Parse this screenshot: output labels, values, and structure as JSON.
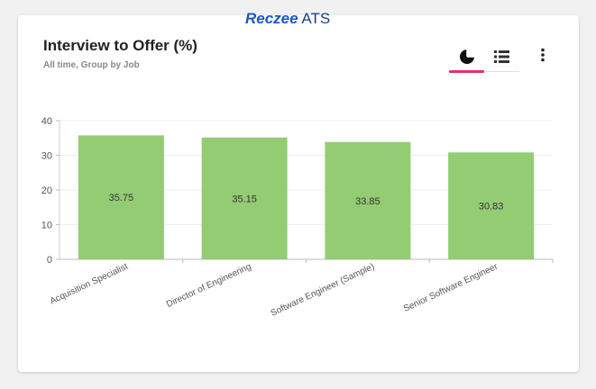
{
  "header": {
    "title": "Interview to Offer (%)",
    "subtitle": "All time, Group by Job",
    "brand_mark": "Reczee",
    "brand_text": " ATS"
  },
  "toolbar": {
    "tabs": [
      {
        "icon": "pie-chart-icon",
        "active": true
      },
      {
        "icon": "list-icon",
        "active": false
      }
    ],
    "menu_icon": "more-vertical-icon"
  },
  "colors": {
    "bar": "#93cc73",
    "accent": "#e3336c",
    "brand": "#1a3d8f"
  },
  "chart_data": {
    "type": "bar",
    "categories": [
      "Acquisition Specialist",
      "Director of Engineering",
      "Software Engineer (Sample)",
      "Senior Software Engineer"
    ],
    "values": [
      35.75,
      35.15,
      33.85,
      30.83
    ],
    "data_labels": [
      "35.75",
      "35.15",
      "33.85",
      "30.83"
    ],
    "ylim": [
      0,
      40
    ],
    "yticks": [
      0,
      10,
      20,
      30,
      40
    ],
    "grid": true,
    "legend": "none"
  }
}
